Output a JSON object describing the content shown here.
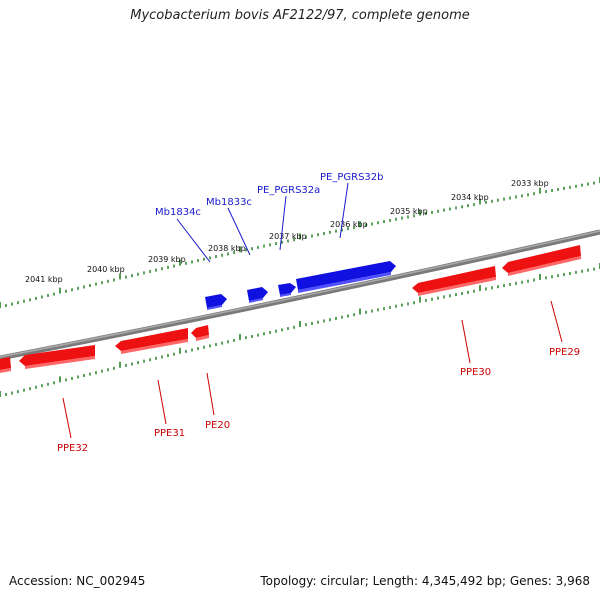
{
  "title": "Mycobacterium bovis AF2122/97, complete genome",
  "footer": {
    "accession": "Accession: NC_002945",
    "summary": "Topology: circular; Length: 4,345,492 bp; Genes: 3,968"
  },
  "colors": {
    "forward_gene": "#1010e0",
    "reverse_gene": "#ee1111",
    "backbone": "#808080",
    "tick": "#1a7a1a",
    "blue_label": "#1a1acc",
    "red_label": "#cc0000"
  },
  "scale_labels": [
    "2041 kbp",
    "2040 kbp",
    "2039 kbp",
    "2038 kbp",
    "2037 kbp",
    "2036 kbp",
    "2035 kbp",
    "2034 kbp",
    "2033 kbp"
  ],
  "forward_genes": [
    "Mb1834c",
    "Mb1833c",
    "PE_PGRS32a",
    "PE_PGRS32b"
  ],
  "reverse_genes": [
    "PPE32",
    "PPE31",
    "PE20",
    "PPE30",
    "PPE29"
  ]
}
